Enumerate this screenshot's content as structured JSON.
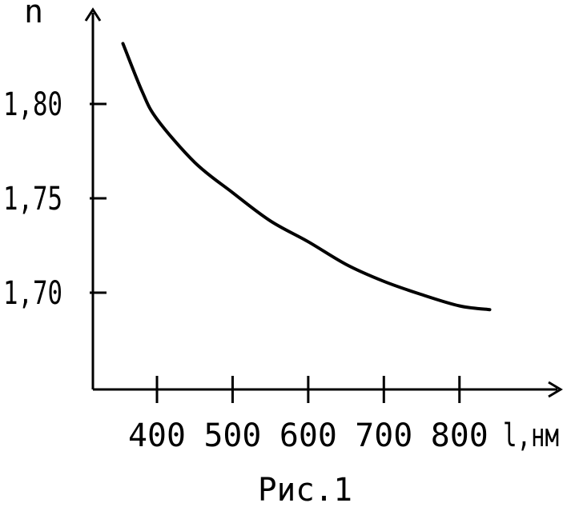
{
  "chart_data": {
    "type": "line",
    "caption": "Рис.1",
    "xlabel": "l,нм",
    "ylabel": "n",
    "xlim": [
      315,
      850
    ],
    "ylim": [
      1.65,
      1.85
    ],
    "x_ticks": [
      400,
      500,
      600,
      700,
      800
    ],
    "x_tick_labels": [
      "400",
      "500",
      "600",
      "700",
      "800"
    ],
    "y_ticks": [
      1.7,
      1.75,
      1.8
    ],
    "y_tick_labels": [
      "1,70",
      "1,75",
      "1,80"
    ],
    "grid": false,
    "series": [
      {
        "x": [
          355,
          380,
          400,
          450,
          500,
          550,
          600,
          650,
          700,
          750,
          800,
          840
        ],
        "y": [
          1.832,
          1.807,
          1.792,
          1.769,
          1.753,
          1.738,
          1.727,
          1.715,
          1.706,
          1.699,
          1.693,
          1.691
        ]
      }
    ],
    "colors": {
      "line": "#000000",
      "axes": "#000000",
      "background": "#ffffff"
    }
  }
}
